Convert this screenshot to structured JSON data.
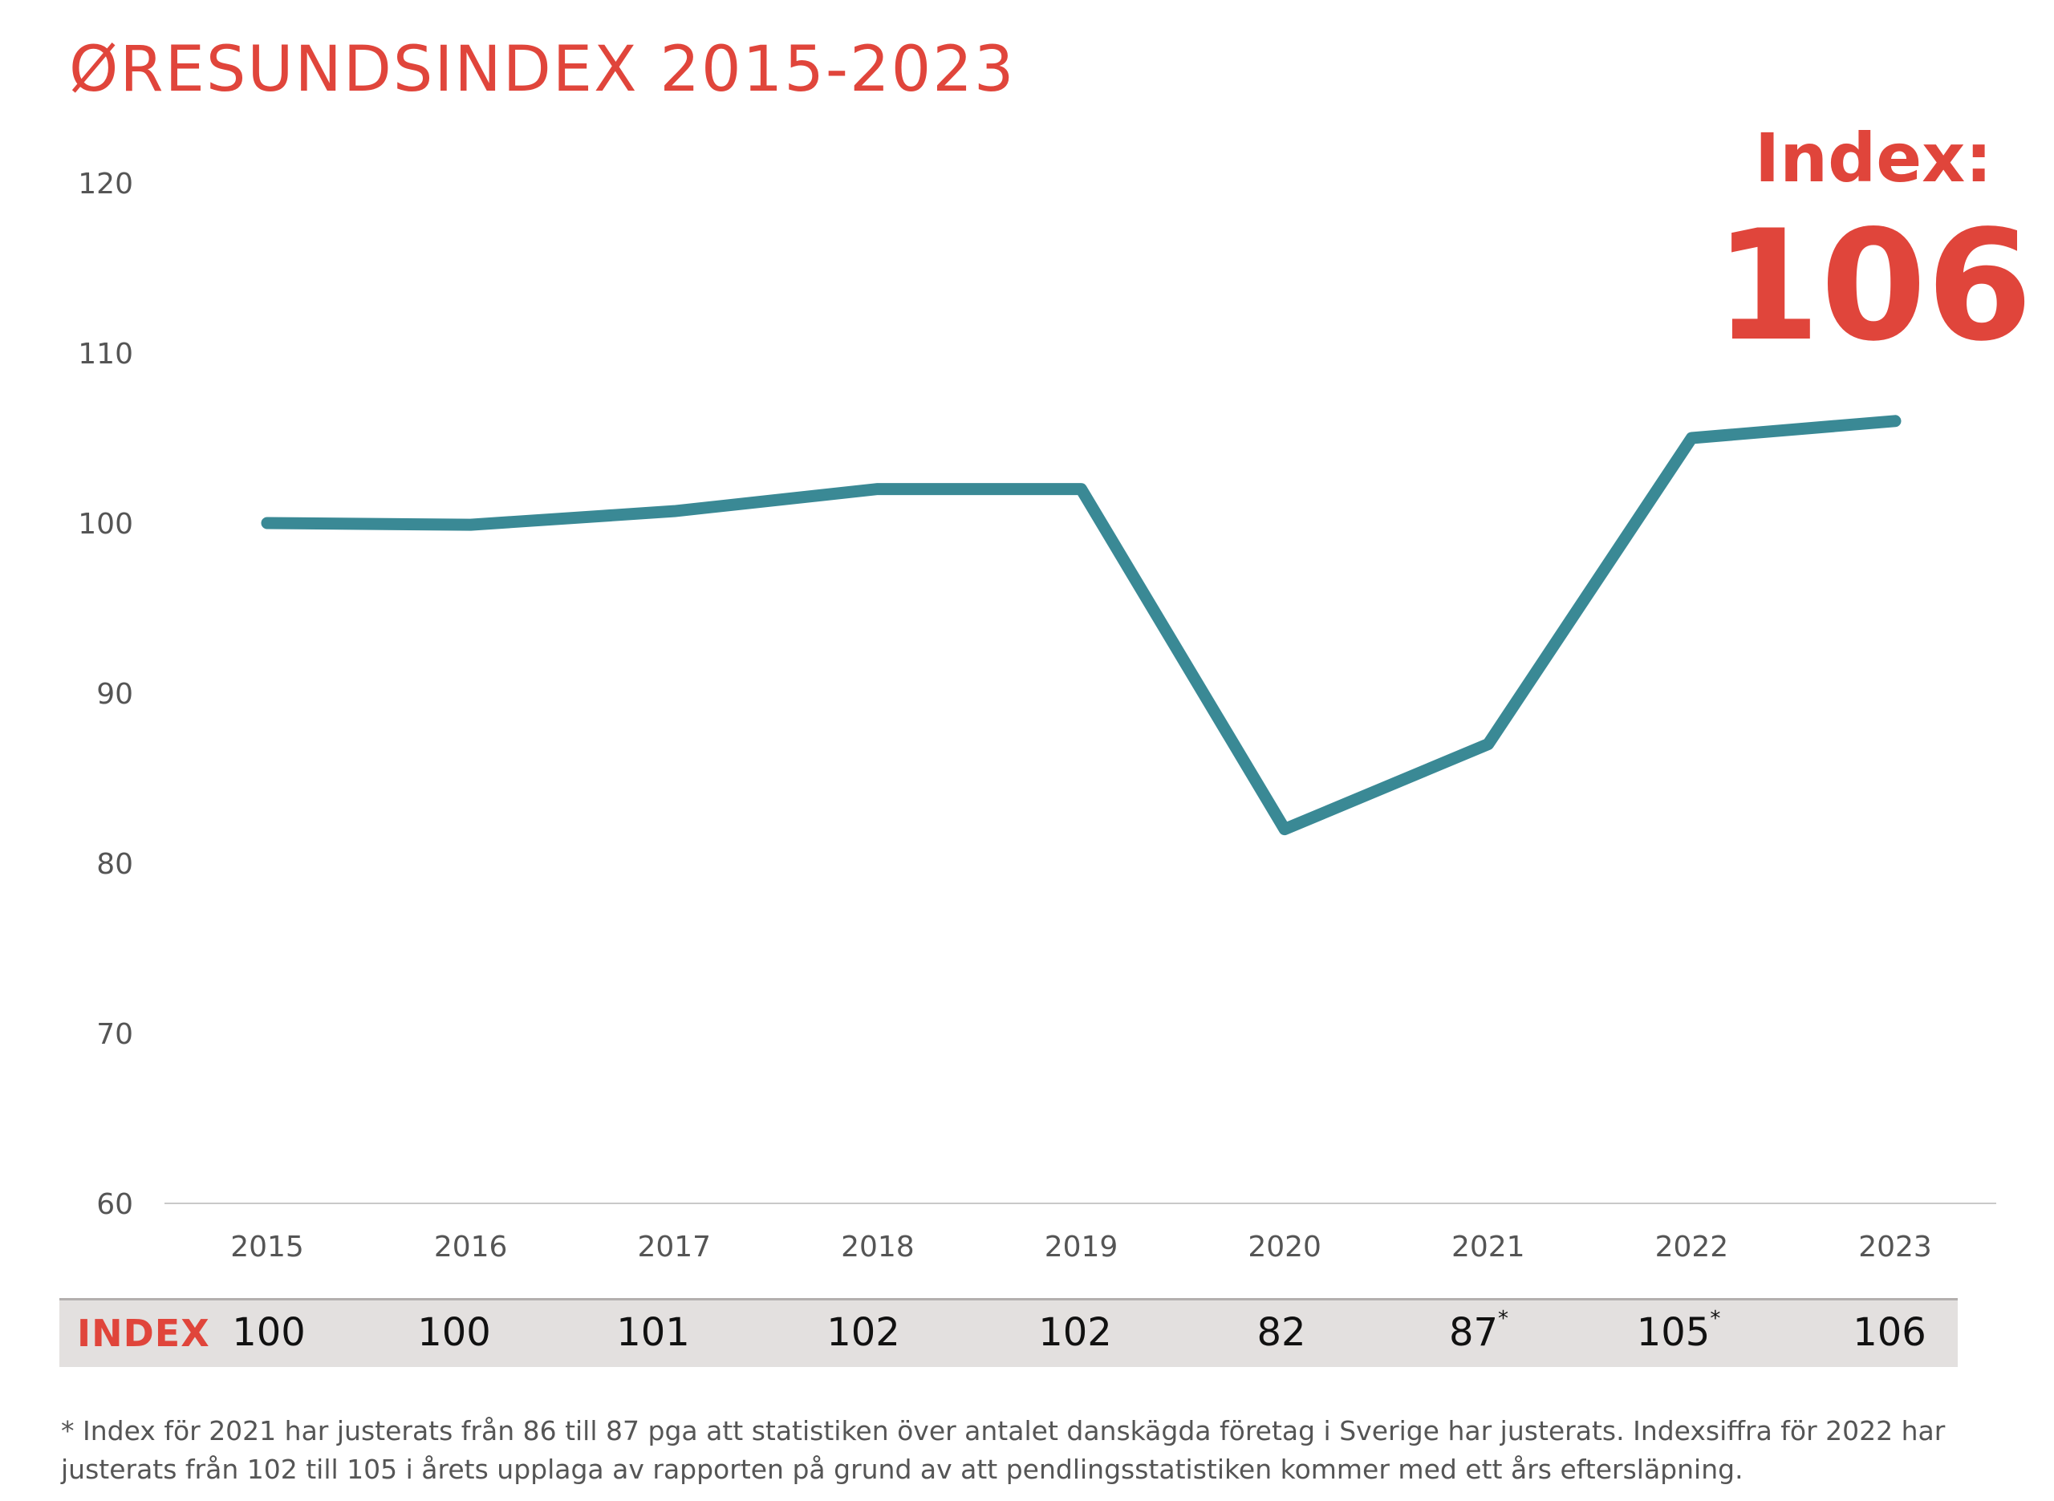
{
  "title": "ØRESUNDSINDEX 2015-2023",
  "callout": {
    "label": "Index:",
    "value": "106"
  },
  "chart_data": {
    "type": "line",
    "title": "ØRESUNDSINDEX 2015-2023",
    "categories": [
      "2015",
      "2016",
      "2017",
      "2018",
      "2019",
      "2020",
      "2021",
      "2022",
      "2023"
    ],
    "series": [
      {
        "values": [
          100,
          99.9,
          100.7,
          102,
          102,
          82,
          87,
          105,
          106
        ]
      }
    ],
    "yticks": [
      "60",
      "70",
      "80",
      "90",
      "100",
      "110",
      "120"
    ],
    "ylim": [
      60,
      120
    ],
    "grid": false,
    "line_color": "#3a8995"
  },
  "index_table": {
    "label": "INDEX",
    "values": [
      {
        "value": "100",
        "mark": ""
      },
      {
        "value": "100",
        "mark": ""
      },
      {
        "value": "101",
        "mark": ""
      },
      {
        "value": "102",
        "mark": ""
      },
      {
        "value": "102",
        "mark": ""
      },
      {
        "value": "82",
        "mark": ""
      },
      {
        "value": "87",
        "mark": "*"
      },
      {
        "value": "105",
        "mark": "*"
      },
      {
        "value": "106",
        "mark": ""
      }
    ]
  },
  "footnote": "* Index för 2021 har justerats från 86 till 87 pga att statistiken över antalet danskägda företag i Sverige har justerats. Indexsiffra för 2022 har justerats från 102 till 105 i årets upplaga av rapporten på grund av att pendlingsstatistiken kommer med ett års eftersläpning.",
  "colors": {
    "accent": "#e0453b",
    "line": "#3a8995",
    "row_bg": "#e3e0df"
  }
}
